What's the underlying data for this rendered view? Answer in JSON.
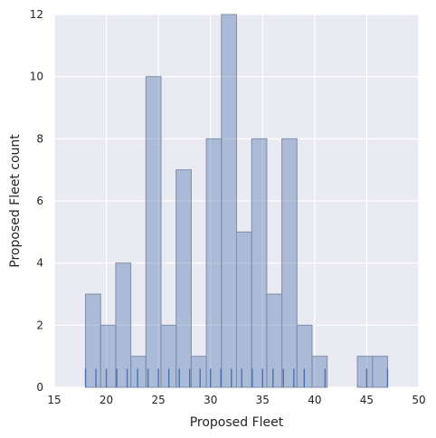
{
  "chart_data": {
    "type": "bar",
    "title": "",
    "xlabel": "Proposed Fleet",
    "ylabel": "Proposed Fleet count",
    "xlim": [
      15,
      50
    ],
    "ylim": [
      0,
      12
    ],
    "xticks": [
      15,
      20,
      25,
      30,
      35,
      40,
      45,
      50
    ],
    "yticks": [
      0,
      2,
      4,
      6,
      8,
      10,
      12
    ],
    "grid": true,
    "bin_edges": [
      18,
      19.45,
      20.9,
      22.35,
      23.8,
      25.25,
      26.7,
      28.15,
      29.6,
      31.05,
      32.5,
      33.95,
      35.4,
      36.85,
      38.3,
      39.75,
      41.2,
      42.65,
      44.1,
      45.55,
      47
    ],
    "counts": [
      3,
      2,
      4,
      1,
      10,
      2,
      7,
      1,
      8,
      12,
      5,
      8,
      3,
      8,
      2,
      1,
      0,
      0,
      1,
      1
    ],
    "rug_values": [
      18,
      19,
      20,
      21,
      22,
      23,
      24,
      25,
      26,
      27,
      28,
      29,
      30,
      31,
      32,
      33,
      34,
      35,
      36,
      37,
      38,
      39,
      41,
      45,
      47
    ],
    "colors": {
      "plot_background": "#EAEAF2",
      "grid": "#FFFFFF",
      "bar_fill": "#4C72B0",
      "bar_fill_opacity": 0.4,
      "bar_edge": "#7F8FA8",
      "rug": "#4C72B0"
    }
  }
}
